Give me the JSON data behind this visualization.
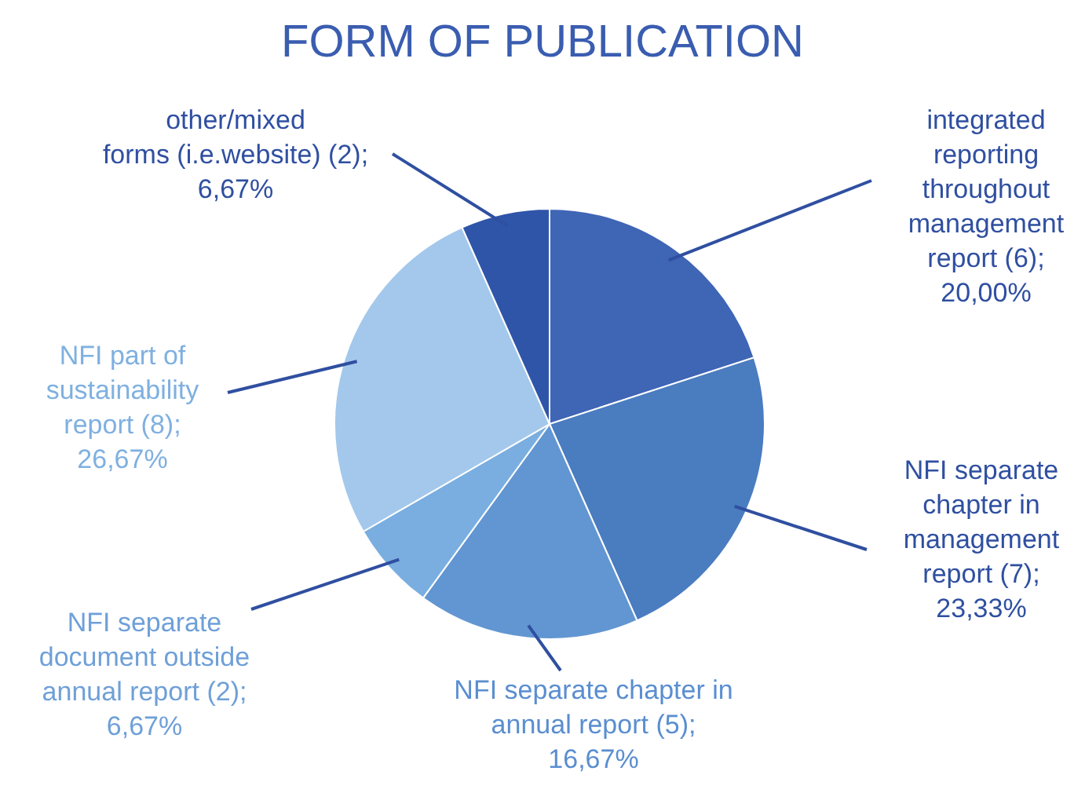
{
  "chart_data": {
    "type": "pie",
    "title": "FORM OF PUBLICATION",
    "categories": [
      "integrated reporting throughout management report",
      "NFI separate chapter in management report",
      "NFI separate chapter in annual report",
      "NFI separate document outside annual report",
      "NFI part of sustainability report",
      "other/mixed forms (i.e.website)"
    ],
    "values": [
      6,
      7,
      5,
      2,
      8,
      2
    ],
    "value_labels": [
      "(6); 20,00%",
      "(7); 23,33%",
      "(5); 16,67%",
      "(2); 6,67%",
      "(8); 26,67%",
      "(2); 6,67%"
    ],
    "colors": [
      "#3f65b5",
      "#4a7cc0",
      "#6296d2",
      "#7aaee0",
      "#a3c8ec",
      "#2f55a8"
    ]
  }
}
